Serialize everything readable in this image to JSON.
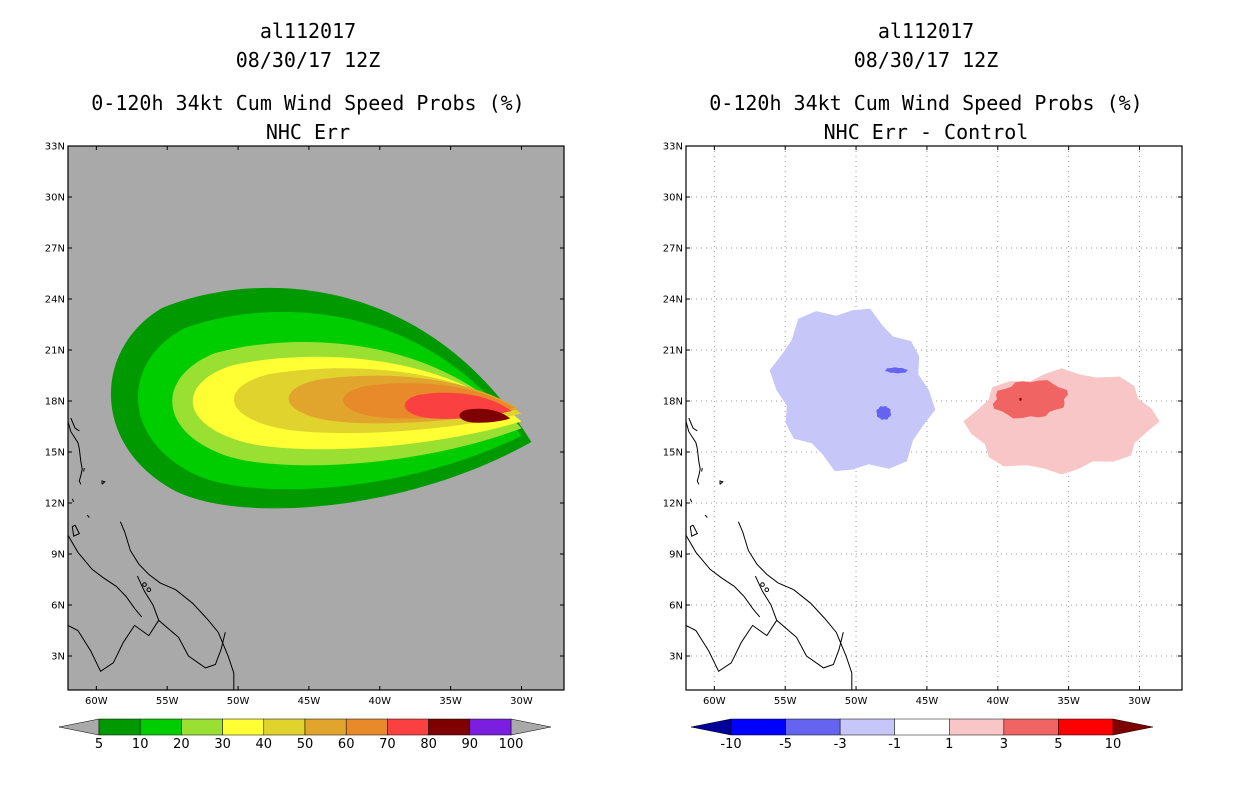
{
  "chart_data": [
    {
      "type": "heatmap",
      "storm_id": "al112017",
      "date": "08/30/17 12Z",
      "title": "0-120h 34kt Cum Wind Speed Probs (%)",
      "subtitle": "NHC Err",
      "x_ticks": [
        "60W",
        "55W",
        "50W",
        "45W",
        "40W",
        "35W",
        "30W"
      ],
      "y_ticks": [
        "33N",
        "30N",
        "27N",
        "24N",
        "21N",
        "18N",
        "15N",
        "12N",
        "9N",
        "6N",
        "3N"
      ],
      "xlim_lon": [
        -62,
        -27
      ],
      "ylim_lat": [
        1,
        33
      ],
      "grid": false,
      "background": "#a9a9a9",
      "colorbar": {
        "labels": [
          "5",
          "10",
          "20",
          "30",
          "40",
          "50",
          "60",
          "70",
          "80",
          "90",
          "100"
        ],
        "colors": [
          "#009a00",
          "#00cd00",
          "#99e033",
          "#ffff33",
          "#e1d32d",
          "#e1a52d",
          "#e98a2a",
          "#fa4040",
          "#7f0000",
          "#7a1fe0"
        ],
        "end_colors": [
          "#a9a9a9",
          "#a9a9a9"
        ]
      },
      "contours": [
        {
          "level": 5,
          "color": "#009a00",
          "lon_min": -60.0,
          "lon_max": -29.3,
          "lat_min": 11.3,
          "lat_max": 25.6
        },
        {
          "level": 10,
          "color": "#00cd00",
          "lon_min": -58.0,
          "lon_max": -30.0,
          "lat_min": 12.5,
          "lat_max": 24.0
        },
        {
          "level": 20,
          "color": "#99e033",
          "lon_min": -55.5,
          "lon_max": -30.0,
          "lat_min": 14.0,
          "lat_max": 22.0
        },
        {
          "level": 30,
          "color": "#ffff33",
          "lon_min": -54.0,
          "lon_max": -30.0,
          "lat_min": 15.0,
          "lat_max": 21.0
        },
        {
          "level": 40,
          "color": "#e1d32d",
          "lon_min": -51.0,
          "lon_max": -30.0,
          "lat_min": 16.0,
          "lat_max": 20.2
        },
        {
          "level": 50,
          "color": "#e1a52d",
          "lon_min": -47.0,
          "lon_max": -30.2,
          "lat_min": 16.6,
          "lat_max": 19.7
        },
        {
          "level": 60,
          "color": "#e98a2a",
          "lon_min": -43.0,
          "lon_max": -30.5,
          "lat_min": 16.9,
          "lat_max": 19.2
        },
        {
          "level": 70,
          "color": "#fa4040",
          "lon_min": -38.5,
          "lon_max": -30.7,
          "lat_min": 16.9,
          "lat_max": 18.6
        },
        {
          "level": 80,
          "color": "#7f0000",
          "lon_min": -34.5,
          "lon_max": -30.8,
          "lat_min": 16.7,
          "lat_max": 17.6
        }
      ]
    },
    {
      "type": "heatmap",
      "storm_id": "al112017",
      "date": "08/30/17 12Z",
      "title": "0-120h 34kt Cum Wind Speed Probs (%)",
      "subtitle": "NHC Err - Control",
      "x_ticks": [
        "60W",
        "55W",
        "50W",
        "45W",
        "40W",
        "35W",
        "30W"
      ],
      "y_ticks": [
        "33N",
        "30N",
        "27N",
        "24N",
        "21N",
        "18N",
        "15N",
        "12N",
        "9N",
        "6N",
        "3N"
      ],
      "xlim_lon": [
        -62,
        -27
      ],
      "ylim_lat": [
        1,
        33
      ],
      "grid": true,
      "background": "#ffffff",
      "colorbar": {
        "labels": [
          "-10",
          "-5",
          "-3",
          "-1",
          "1",
          "3",
          "5",
          "10"
        ],
        "colors": [
          "#0000ff",
          "#6464f0",
          "#c6c6f8",
          "#ffffff",
          "#f8c6c6",
          "#f06464",
          "#ff0000"
        ],
        "end_colors": [
          "#00009a",
          "#7f0000"
        ]
      },
      "regions": [
        {
          "level": -1,
          "color": "#c6c6f8",
          "lon_min": -56.5,
          "lon_max": -44.0,
          "lat_min": 13.2,
          "lat_max": 24.1
        },
        {
          "level": -3,
          "color": "#6464f0",
          "lon_min": -48.0,
          "lon_max": -46.3,
          "lat_min": 19.6,
          "lat_max": 20.0
        },
        {
          "level": -3,
          "color": "#6464f0",
          "lon_min": -48.6,
          "lon_max": -47.5,
          "lat_min": 16.8,
          "lat_max": 17.8
        },
        {
          "level": 1,
          "color": "#f8c6c6",
          "lon_min": -42.5,
          "lon_max": -28.5,
          "lat_min": 13.2,
          "lat_max": 20.4
        },
        {
          "level": 3,
          "color": "#f06464",
          "lon_min": -40.6,
          "lon_max": -34.8,
          "lat_min": 16.8,
          "lat_max": 19.4
        },
        {
          "level": 5,
          "color": "#7f0000",
          "lon_min": -38.5,
          "lon_max": -38.3,
          "lat_min": 18.0,
          "lat_max": 18.2
        }
      ]
    }
  ]
}
